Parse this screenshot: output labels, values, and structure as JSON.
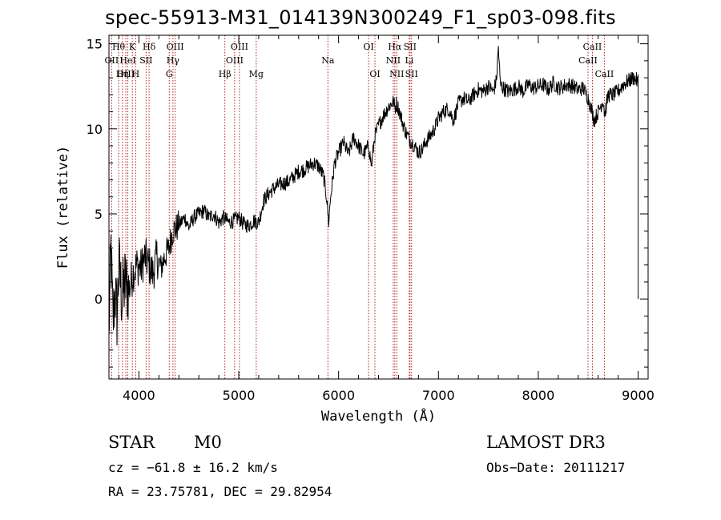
{
  "chart_data": {
    "type": "line",
    "title": "spec-55913-M31_014139N300249_F1_sp03-098.fits",
    "xlabel": "Wavelength (Å)",
    "ylabel": "Flux (relative)",
    "xlim": [
      3700,
      9100
    ],
    "ylim": [
      -4.7,
      15.5
    ],
    "xticks": [
      4000,
      5000,
      6000,
      7000,
      8000,
      9000
    ],
    "yticks": [
      0,
      5,
      10,
      15
    ],
    "series": [
      {
        "name": "spectrum",
        "x": [
          3700,
          3720,
          3740,
          3760,
          3780,
          3800,
          3830,
          3860,
          3900,
          3940,
          3980,
          4020,
          4060,
          4100,
          4140,
          4180,
          4220,
          4260,
          4300,
          4340,
          4380,
          4420,
          4460,
          4500,
          4550,
          4600,
          4650,
          4700,
          4750,
          4800,
          4850,
          4900,
          4950,
          5000,
          5050,
          5100,
          5150,
          5200,
          5250,
          5300,
          5350,
          5400,
          5450,
          5500,
          5550,
          5600,
          5650,
          5700,
          5750,
          5800,
          5850,
          5880,
          5900,
          5920,
          5960,
          6000,
          6050,
          6100,
          6150,
          6200,
          6250,
          6300,
          6330,
          6360,
          6400,
          6450,
          6500,
          6550,
          6565,
          6580,
          6600,
          6620,
          6650,
          6680,
          6720,
          6760,
          6800,
          6840,
          6880,
          6920,
          6960,
          7000,
          7050,
          7100,
          7150,
          7200,
          7250,
          7300,
          7350,
          7400,
          7450,
          7500,
          7550,
          7580,
          7600,
          7620,
          7650,
          7700,
          7750,
          7800,
          7850,
          7900,
          7950,
          8000,
          8050,
          8100,
          8150,
          8200,
          8250,
          8300,
          8350,
          8400,
          8450,
          8500,
          8540,
          8560,
          8600,
          8650,
          8665,
          8700,
          8750,
          8800,
          8850,
          8900,
          8950,
          8980,
          9000
        ],
        "y": [
          -2.0,
          3.0,
          -1.5,
          0.5,
          -1.0,
          2.0,
          0.0,
          1.0,
          0.5,
          1.5,
          2.0,
          1.8,
          2.5,
          2.0,
          1.5,
          2.5,
          1.8,
          2.5,
          3.0,
          4.0,
          4.2,
          4.5,
          4.8,
          4.2,
          4.8,
          5.0,
          5.2,
          4.8,
          5.0,
          4.5,
          4.8,
          4.5,
          4.6,
          4.8,
          4.4,
          4.3,
          4.6,
          4.5,
          5.8,
          6.2,
          6.5,
          6.7,
          6.8,
          6.9,
          7.2,
          7.5,
          7.6,
          7.8,
          8.0,
          7.8,
          7.2,
          6.0,
          4.5,
          6.0,
          8.0,
          8.6,
          9.2,
          8.5,
          9.5,
          9.0,
          8.5,
          9.0,
          7.8,
          9.5,
          10.2,
          10.8,
          11.3,
          11.6,
          11.2,
          11.5,
          11.2,
          10.8,
          10.2,
          9.7,
          9.3,
          9.0,
          8.6,
          8.8,
          9.3,
          9.6,
          10.0,
          10.6,
          11.0,
          11.2,
          10.5,
          11.5,
          11.8,
          11.6,
          12.0,
          12.3,
          12.2,
          12.5,
          12.2,
          12.8,
          14.8,
          12.6,
          12.4,
          12.2,
          12.3,
          12.5,
          12.2,
          12.6,
          12.4,
          12.5,
          12.6,
          12.3,
          12.7,
          12.4,
          12.5,
          12.6,
          12.5,
          12.3,
          12.4,
          11.8,
          11.0,
          10.5,
          11.0,
          11.7,
          10.8,
          12.0,
          12.0,
          12.2,
          12.6,
          12.8,
          13.0,
          12.9,
          12.7
        ]
      }
    ],
    "line_markers": [
      {
        "label": "Hθ",
        "x": 3797,
        "row": 1
      },
      {
        "label": "OII",
        "x": 3727,
        "row": 2
      },
      {
        "label": "OIII",
        "x": 3869,
        "row": 3
      },
      {
        "label": "HeI",
        "x": 3889,
        "row": 2
      },
      {
        "label": "Hη",
        "x": 3835,
        "row": 3
      },
      {
        "label": "K",
        "x": 3934,
        "row": 1
      },
      {
        "label": "H",
        "x": 3968,
        "row": 3
      },
      {
        "label": "SII",
        "x": 4072,
        "row": 2
      },
      {
        "label": "Hδ",
        "x": 4102,
        "row": 1
      },
      {
        "label": "OIII",
        "x": 4363,
        "row": 1
      },
      {
        "label": "Hγ",
        "x": 4341,
        "row": 2
      },
      {
        "label": "G",
        "x": 4304,
        "row": 3
      },
      {
        "label": "Hβ",
        "x": 4861,
        "row": 3
      },
      {
        "label": "OIII",
        "x": 5007,
        "row": 1
      },
      {
        "label": "OIII",
        "x": 4959,
        "row": 2
      },
      {
        "label": "Mg",
        "x": 5175,
        "row": 3
      },
      {
        "label": "Na",
        "x": 5893,
        "row": 2
      },
      {
        "label": "OI",
        "x": 6300,
        "row": 1
      },
      {
        "label": "OI",
        "x": 6364,
        "row": 3
      },
      {
        "label": "Hα",
        "x": 6563,
        "row": 1
      },
      {
        "label": "SII",
        "x": 6716,
        "row": 1
      },
      {
        "label": "NII",
        "x": 6548,
        "row": 2
      },
      {
        "label": "Li",
        "x": 6708,
        "row": 2
      },
      {
        "label": "NII",
        "x": 6583,
        "row": 3
      },
      {
        "label": "SII",
        "x": 6731,
        "row": 3
      },
      {
        "label": "CaII",
        "x": 8542,
        "row": 1
      },
      {
        "label": "CaII",
        "x": 8498,
        "row": 2
      },
      {
        "label": "CaII",
        "x": 8662,
        "row": 3
      }
    ]
  },
  "info": {
    "class": "STAR",
    "subclass": "M0",
    "survey": "LAMOST DR3",
    "cz": "cz = −61.8 ± 16.2 km/s",
    "obs_date": "Obs−Date: 20111217",
    "coords": "RA =  23.75781, DEC =  29.82954"
  },
  "colors": {
    "marker": "#b22222",
    "spectrum": "#000000"
  }
}
